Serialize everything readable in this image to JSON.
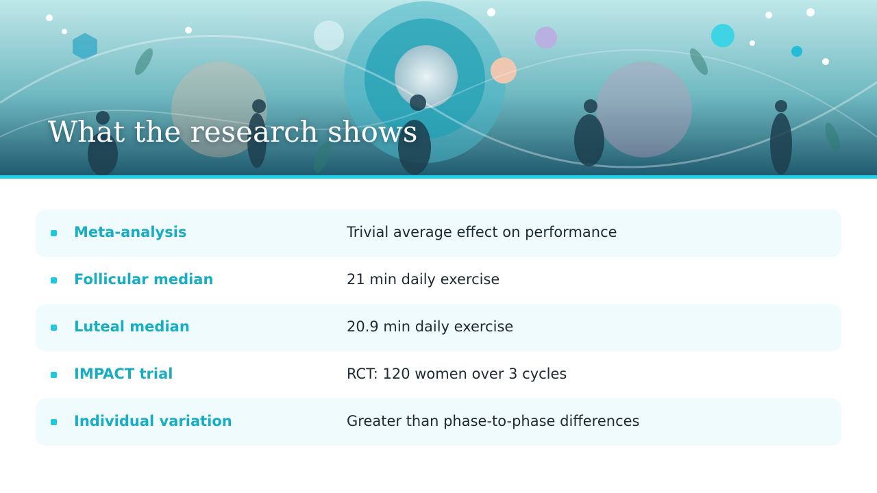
{
  "header": {
    "title": "What the research shows"
  },
  "rows": [
    {
      "label": "Meta-analysis",
      "text": "Trivial average effect on performance"
    },
    {
      "label": "Follicular median",
      "text": "21 min daily exercise"
    },
    {
      "label": "Luteal median",
      "text": "20.9 min daily exercise"
    },
    {
      "label": "IMPACT trial",
      "text": "RCT: 120 women over 3 cycles"
    },
    {
      "label": "Individual variation",
      "text": "Greater than phase-to-phase differences"
    }
  ]
}
